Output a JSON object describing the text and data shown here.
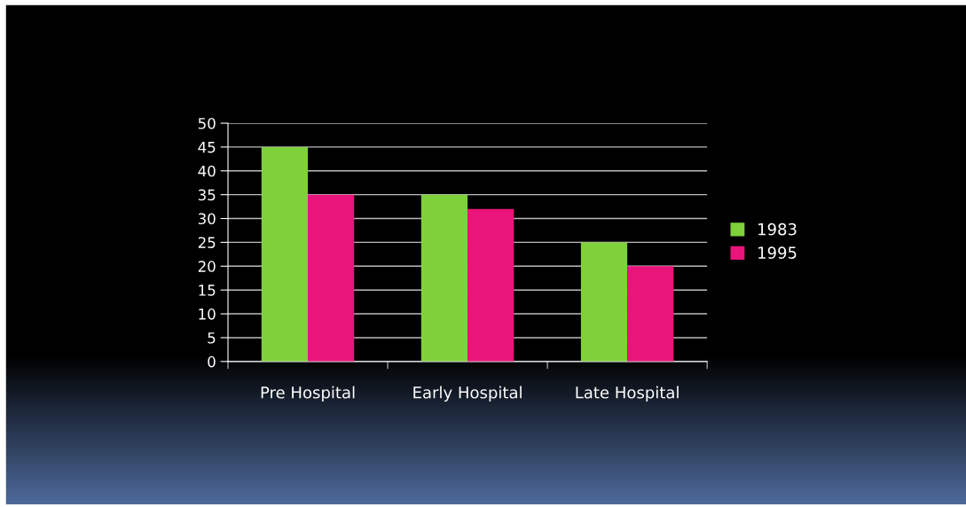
{
  "chart_data": {
    "type": "bar",
    "categories": [
      "Pre Hospital",
      "Early Hospital",
      "Late Hospital"
    ],
    "series": [
      {
        "name": "1983",
        "color": "#7fd13b",
        "values": [
          45,
          35,
          25
        ]
      },
      {
        "name": "1995",
        "color": "#ea157a",
        "values": [
          35,
          32,
          20
        ]
      }
    ],
    "ylim": [
      0,
      50
    ],
    "yticks": [
      0,
      5,
      10,
      15,
      20,
      25,
      30,
      35,
      40,
      45,
      50
    ],
    "grid": "y",
    "legend": "right"
  }
}
